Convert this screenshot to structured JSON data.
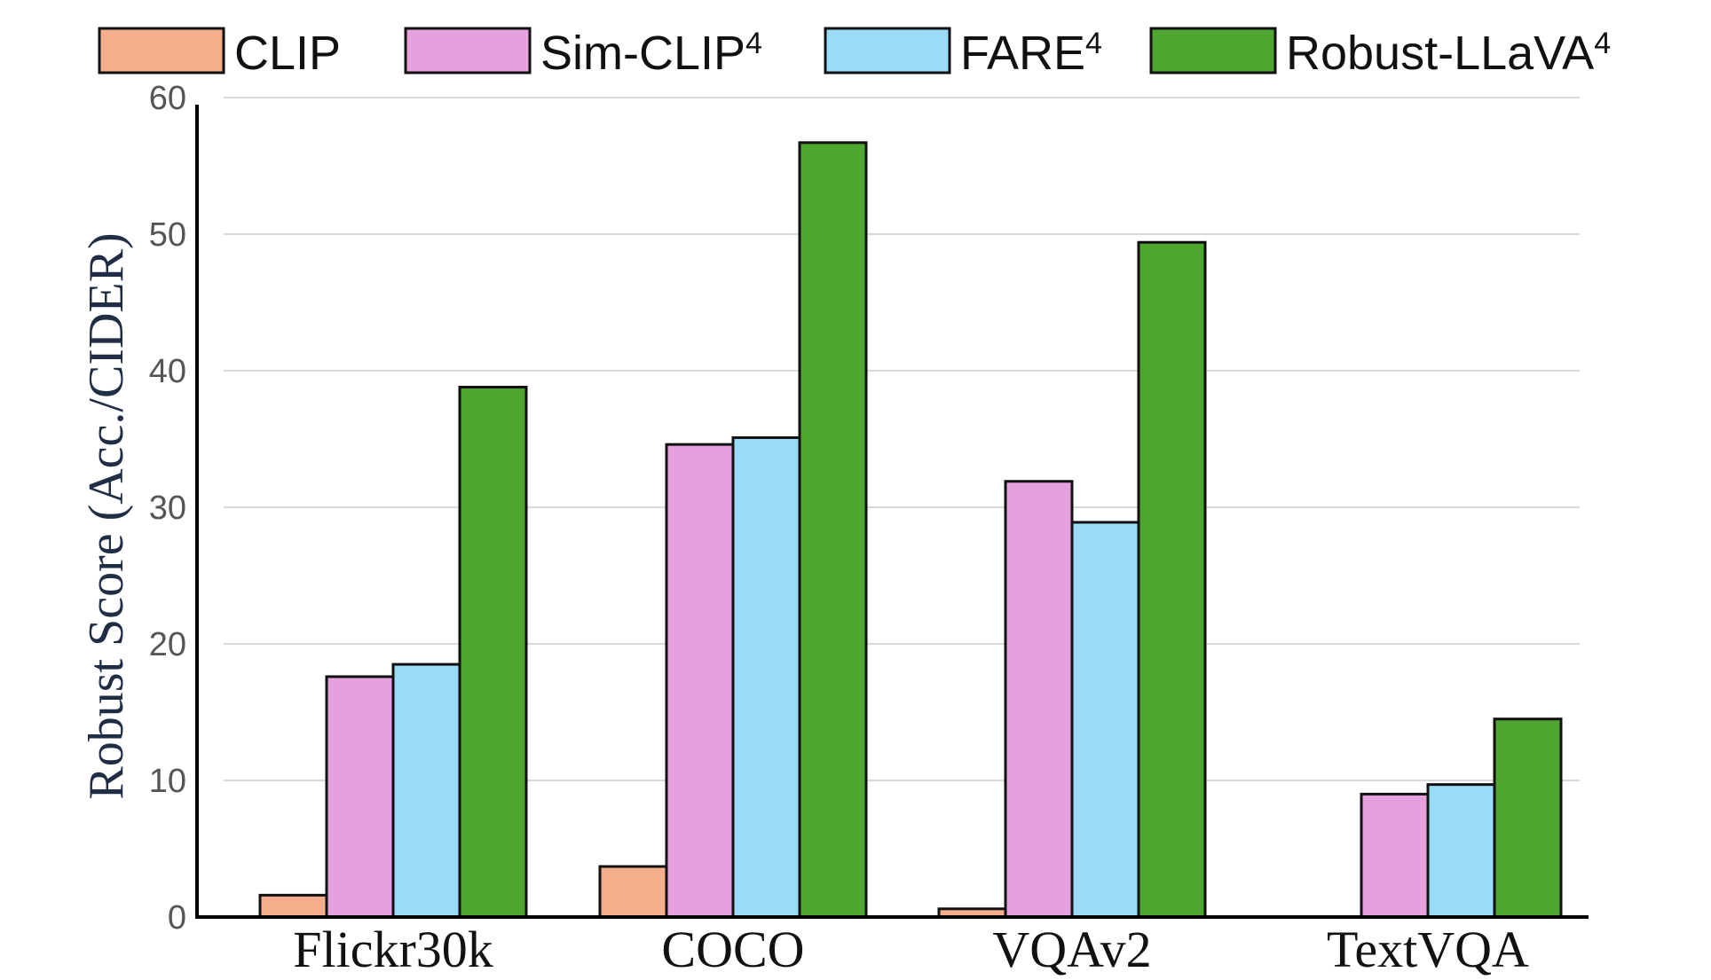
{
  "chart_data": {
    "type": "bar",
    "title": "",
    "xlabel": "",
    "ylabel": "Robust Score (Acc./CIDER)",
    "ylim": [
      0,
      60
    ],
    "yticks": [
      0,
      10,
      20,
      30,
      40,
      50,
      60
    ],
    "grid": true,
    "legend_position": "top",
    "categories": [
      "Flickr30k",
      "COCO",
      "VQAv2",
      "TextVQA"
    ],
    "series": [
      {
        "name": "CLIP",
        "sup": "",
        "color": "#f4ae8b",
        "values": [
          1.6,
          3.7,
          0.6,
          0.0
        ]
      },
      {
        "name": "Sim-CLIP",
        "sup": "4",
        "color": "#e5a0de",
        "values": [
          17.6,
          34.6,
          31.9,
          9.0
        ]
      },
      {
        "name": "FARE",
        "sup": "4",
        "color": "#9adcf8",
        "values": [
          18.5,
          35.1,
          28.9,
          9.7
        ]
      },
      {
        "name": "Robust-LLaVA",
        "sup": "4",
        "color": "#4ea52f",
        "values": [
          38.8,
          56.7,
          49.4,
          14.5
        ]
      }
    ]
  }
}
